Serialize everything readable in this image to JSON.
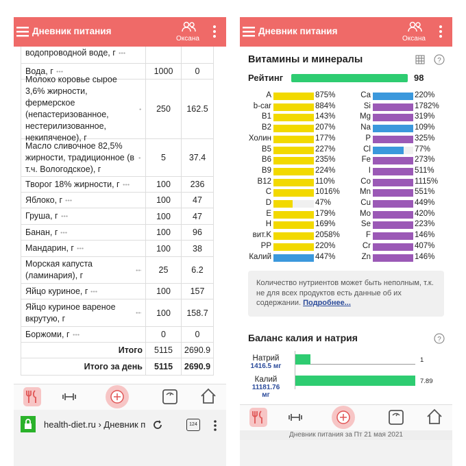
{
  "left_screen": {
    "header": {
      "title": "Дневник питания",
      "user": "Оксана"
    },
    "table": {
      "rows": [
        {
          "name": "водопроводной воде, г"
        },
        {
          "name": "Вода, г",
          "amount": 1000,
          "kcal": 0
        },
        {
          "name": "Молоко коровье сырое 3,6% жирности, фермерское (непастеризованное, нестерилизованное, некипяченое), г",
          "amount": 250,
          "kcal": 162.5
        },
        {
          "name": "Масло сливочное 82,5% жирности, традиционное (в т.ч. Вологодское), г",
          "amount": 5,
          "kcal": 37.4
        },
        {
          "name": "Творог 18% жирности, г",
          "amount": 100,
          "kcal": 236
        },
        {
          "name": "Яблоко, г",
          "amount": 100,
          "kcal": 47
        },
        {
          "name": "Груша, г",
          "amount": 100,
          "kcal": 47
        },
        {
          "name": "Банан, г",
          "amount": 100,
          "kcal": 96
        },
        {
          "name": "Мандарин, г",
          "amount": 100,
          "kcal": 38
        },
        {
          "name": "Морская капуста (ламинария), г",
          "amount": 25,
          "kcal": 6.2
        },
        {
          "name": "Яйцо куриное, г",
          "amount": 100,
          "kcal": 157
        },
        {
          "name": "Яйцо куриное вареное вкрутую, г",
          "amount": 100,
          "kcal": 158.7
        },
        {
          "name": "Боржоми, г",
          "amount": 0,
          "kcal": 0
        }
      ],
      "totals": [
        {
          "label": "Итого",
          "amount": 5115,
          "kcal": 2690.9
        },
        {
          "label": "Итого за день",
          "amount": 5115,
          "kcal": 2690.9
        }
      ]
    },
    "browser": {
      "url": "health-diet.ru › Дневник п",
      "tabs": "124"
    }
  },
  "right_screen": {
    "header": {
      "title": "Дневник питания",
      "user": "Оксана"
    },
    "section_title": "Витамины и минералы",
    "rating": {
      "label": "Рейтинг",
      "value": 98,
      "color": "#2ecc71"
    },
    "nutrients_left": [
      {
        "name": "A",
        "value": 875,
        "label": "875%",
        "color": "#f2d900"
      },
      {
        "name": "b-car",
        "value": 884,
        "label": "884%",
        "color": "#f2d900"
      },
      {
        "name": "B1",
        "value": 143,
        "label": "143%",
        "color": "#f2d900"
      },
      {
        "name": "B2",
        "value": 207,
        "label": "207%",
        "color": "#f2d900"
      },
      {
        "name": "Холин",
        "value": 177,
        "label": "177%",
        "color": "#f2d900"
      },
      {
        "name": "B5",
        "value": 227,
        "label": "227%",
        "color": "#f2d900"
      },
      {
        "name": "B6",
        "value": 235,
        "label": "235%",
        "color": "#f2d900"
      },
      {
        "name": "B9",
        "value": 224,
        "label": "224%",
        "color": "#f2d900"
      },
      {
        "name": "B12",
        "value": 110,
        "label": "110%",
        "color": "#f2d900"
      },
      {
        "name": "C",
        "value": 1016,
        "label": "1016%",
        "color": "#f2d900"
      },
      {
        "name": "D",
        "value": 47,
        "label": "47%",
        "color": "#f2d900"
      },
      {
        "name": "E",
        "value": 179,
        "label": "179%",
        "color": "#f2d900"
      },
      {
        "name": "H",
        "value": 169,
        "label": "169%",
        "color": "#f2d900"
      },
      {
        "name": "вит.K",
        "value": 2058,
        "label": "2058%",
        "color": "#f2d900"
      },
      {
        "name": "PP",
        "value": 220,
        "label": "220%",
        "color": "#f2d900"
      },
      {
        "name": "Калий",
        "value": 447,
        "label": "447%",
        "color": "#3b98dc"
      }
    ],
    "nutrients_right": [
      {
        "name": "Ca",
        "value": 220,
        "label": "220%",
        "color": "#3b98dc"
      },
      {
        "name": "Si",
        "value": 1782,
        "label": "1782%",
        "color": "#9b59b6"
      },
      {
        "name": "Mg",
        "value": 319,
        "label": "319%",
        "color": "#9b59b6"
      },
      {
        "name": "Na",
        "value": 109,
        "label": "109%",
        "color": "#3b98dc"
      },
      {
        "name": "P",
        "value": 325,
        "label": "325%",
        "color": "#9b59b6"
      },
      {
        "name": "Cl",
        "value": 77,
        "label": "77%",
        "color": "#3b98dc"
      },
      {
        "name": "Fe",
        "value": 273,
        "label": "273%",
        "color": "#9b59b6"
      },
      {
        "name": "I",
        "value": 511,
        "label": "511%",
        "color": "#9b59b6"
      },
      {
        "name": "Co",
        "value": 1115,
        "label": "1115%",
        "color": "#9b59b6"
      },
      {
        "name": "Mn",
        "value": 551,
        "label": "551%",
        "color": "#9b59b6"
      },
      {
        "name": "Cu",
        "value": 449,
        "label": "449%",
        "color": "#9b59b6"
      },
      {
        "name": "Mo",
        "value": 420,
        "label": "420%",
        "color": "#9b59b6"
      },
      {
        "name": "Se",
        "value": 223,
        "label": "223%",
        "color": "#9b59b6"
      },
      {
        "name": "F",
        "value": 146,
        "label": "146%",
        "color": "#9b59b6"
      },
      {
        "name": "Cr",
        "value": 407,
        "label": "407%",
        "color": "#9b59b6"
      },
      {
        "name": "Zn",
        "value": 146,
        "label": "146%",
        "color": "#9b59b6"
      }
    ],
    "note": {
      "text": "Количество нутриентов может быть неполным, т.к. не для всех продуктов есть данные об их содержании.",
      "link": "Подробнее..."
    },
    "balance": {
      "title": "Баланс калия и натрия",
      "items": [
        {
          "name": "Натрий",
          "amount": "1416.5 мг",
          "value": 1,
          "color": "#2ecc71"
        },
        {
          "name": "Калий",
          "amount": "11181.76 мг",
          "value": 7.89,
          "color": "#2ecc71"
        }
      ]
    },
    "footer": "Дневник питания за Пт 21 мая 2021"
  }
}
